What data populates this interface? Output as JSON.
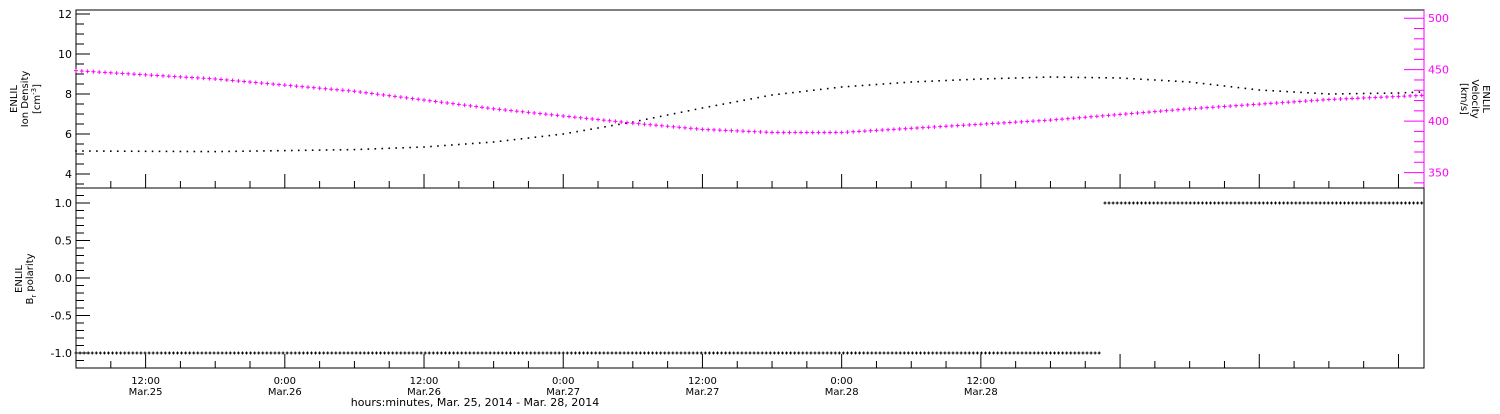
{
  "chart_data": [
    {
      "type": "scatter",
      "panel": "top",
      "ylabel_left": [
        "ENLIL",
        "Ion Density",
        "[cm",
        "-3",
        "]"
      ],
      "ylabel_right": [
        "ENLIL",
        "Velocity",
        "[km/s]"
      ],
      "yleft_range": [
        3.3,
        12.2
      ],
      "yleft_ticks": [
        "4",
        "6",
        "8",
        "10",
        "12"
      ],
      "yleft_tick_values": [
        4,
        6,
        8,
        10,
        12
      ],
      "yright_range": [
        335,
        508
      ],
      "yright_ticks": [
        "350",
        "400",
        "450",
        "500"
      ],
      "yright_tick_values": [
        350,
        400,
        450,
        500
      ],
      "colors": {
        "density": "#000000",
        "velocity": "#ff00ff",
        "axis": "#000000"
      },
      "series": [
        {
          "key": "density",
          "axis": "left",
          "x": [
            0,
            12,
            24,
            30,
            36,
            42,
            48,
            54,
            60,
            66,
            72,
            78,
            84,
            90,
            96,
            102,
            108,
            114,
            116
          ],
          "y": [
            5.15,
            5.12,
            5.22,
            5.35,
            5.6,
            6.0,
            6.6,
            7.3,
            7.95,
            8.35,
            8.6,
            8.75,
            8.85,
            8.8,
            8.6,
            8.2,
            8.0,
            8.05,
            8.1
          ]
        },
        {
          "key": "velocity",
          "axis": "right",
          "x": [
            0,
            12,
            24,
            36,
            48,
            54,
            60,
            66,
            72,
            84,
            96,
            108,
            116
          ],
          "y": [
            449,
            441,
            429,
            412,
            398,
            392,
            389,
            389,
            393,
            401,
            412,
            421,
            425
          ]
        }
      ]
    },
    {
      "type": "scatter",
      "panel": "bottom",
      "ylabel_left": [
        "ENLIL",
        "B",
        "r",
        " polarity"
      ],
      "yrange": [
        -1.2,
        1.2
      ],
      "yticks": [
        "-1.0",
        "-0.5",
        "0.0",
        "0.5",
        "1.0"
      ],
      "ytick_values": [
        -1.0,
        -0.5,
        0.0,
        0.5,
        1.0
      ],
      "series": [
        {
          "key": "polarity",
          "segments": [
            {
              "x": [
                0,
                88.3
              ],
              "y": -1.0
            },
            {
              "x": [
                88.7,
                116
              ],
              "y": 1.0
            }
          ]
        }
      ]
    }
  ],
  "x_axis": {
    "range": [
      0,
      116.2
    ],
    "tick_hours": [
      6,
      18,
      30,
      42,
      54,
      66,
      78,
      90,
      102,
      114
    ],
    "tick_labels": [
      [
        "12:00",
        "Mar.25"
      ],
      [
        "0:00",
        "Mar.26"
      ],
      [
        "12:00",
        "Mar.26"
      ],
      [
        "0:00",
        "Mar.27"
      ],
      [
        "12:00",
        "Mar.27"
      ],
      [
        "0:00",
        "Mar.28"
      ],
      [
        "12:00",
        "Mar.28"
      ]
    ],
    "label_hours": [
      6,
      18,
      30,
      42,
      54,
      66,
      78
    ],
    "xlabel": "hours:minutes, Mar. 25, 2014 - Mar. 28, 2014"
  }
}
